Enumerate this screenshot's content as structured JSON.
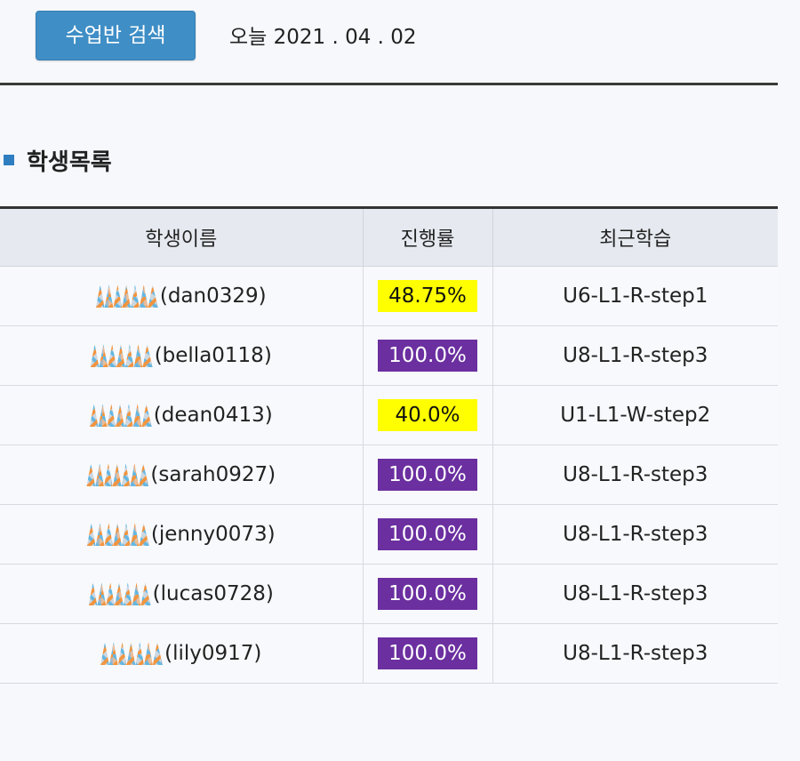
{
  "header": {
    "search_button_label": "수업반 검색",
    "today_label": "오늘 2021 . 04 . 02"
  },
  "section": {
    "title": "학생목록"
  },
  "table": {
    "columns": [
      "학생이름",
      "진행률",
      "최근학습"
    ],
    "rows": [
      {
        "student_id": "(dan0329)",
        "progress": "48.75%",
        "status": "partial",
        "recent": "U6-L1-R-step1"
      },
      {
        "student_id": "(bella0118)",
        "progress": "100.0%",
        "status": "complete",
        "recent": "U8-L1-R-step3"
      },
      {
        "student_id": "(dean0413)",
        "progress": "40.0%",
        "status": "partial",
        "recent": "U1-L1-W-step2"
      },
      {
        "student_id": "(sarah0927)",
        "progress": "100.0%",
        "status": "complete",
        "recent": "U8-L1-R-step3"
      },
      {
        "student_id": "(jenny0073)",
        "progress": "100.0%",
        "status": "complete",
        "recent": "U8-L1-R-step3"
      },
      {
        "student_id": "(lucas0728)",
        "progress": "100.0%",
        "status": "complete",
        "recent": "U8-L1-R-step3"
      },
      {
        "student_id": "(lily0917)",
        "progress": "100.0%",
        "status": "complete",
        "recent": "U8-L1-R-step3"
      }
    ]
  },
  "colors": {
    "button": "#3f8ec6",
    "partial_badge": "#ffff00",
    "complete_badge": "#6b2fa0",
    "section_bullet": "#2f7ec0"
  }
}
